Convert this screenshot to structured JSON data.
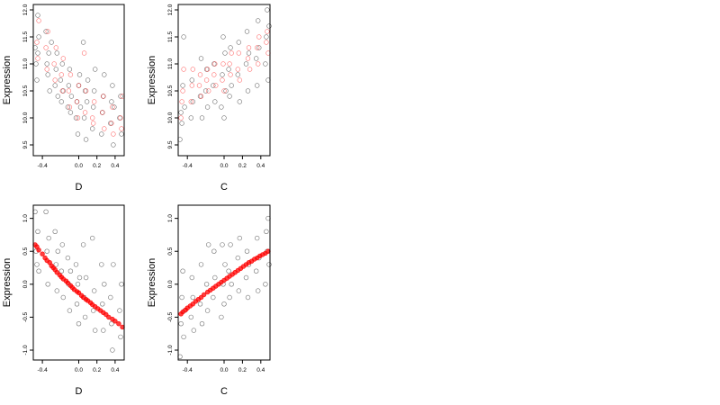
{
  "chart_data": [
    {
      "type": "scatter",
      "title": "",
      "xlabel": "D",
      "ylabel": "Expression",
      "xlim": [
        -0.5,
        0.5
      ],
      "ylim": [
        9.3,
        12.1
      ],
      "x_ticks": [
        -0.4,
        0.0,
        0.2,
        0.4
      ],
      "x_tick_labels": [
        "-0.4",
        "0.0",
        "0.2",
        "0.4"
      ],
      "y_ticks": [
        9.5,
        10.0,
        10.5,
        11.0,
        11.5,
        12.0
      ],
      "y_tick_labels": [
        "9.5",
        "10.0",
        "10.5",
        "11.0",
        "11.5",
        "12.0"
      ],
      "colors": {
        "observed": "#000000",
        "fitted": "#ff0000"
      },
      "series": [
        {
          "color": "#000000",
          "style": "open-circle",
          "x": [
            -0.48,
            -0.47,
            -0.46,
            -0.45,
            -0.45,
            -0.44,
            -0.36,
            -0.35,
            -0.34,
            -0.33,
            -0.32,
            -0.3,
            -0.26,
            -0.25,
            -0.24,
            -0.23,
            -0.2,
            -0.19,
            -0.18,
            -0.17,
            -0.12,
            -0.11,
            -0.1,
            -0.09,
            -0.08,
            -0.03,
            -0.02,
            -0.01,
            0.0,
            0.01,
            0.02,
            0.05,
            0.06,
            0.07,
            0.08,
            0.09,
            0.1,
            0.15,
            0.16,
            0.17,
            0.18,
            0.25,
            0.26,
            0.27,
            0.28,
            0.35,
            0.36,
            0.37,
            0.38,
            0.39,
            0.45,
            0.46,
            0.47
          ],
          "y": [
            11.3,
            11.0,
            10.7,
            11.9,
            11.2,
            11.5,
            11.6,
            11.0,
            10.8,
            11.2,
            10.5,
            11.4,
            10.6,
            10.9,
            11.2,
            10.4,
            10.7,
            10.3,
            11.0,
            10.5,
            10.2,
            10.6,
            10.9,
            10.1,
            10.4,
            10.0,
            10.3,
            9.7,
            10.6,
            10.8,
            10.2,
            11.4,
            10.0,
            10.5,
            9.6,
            10.3,
            10.7,
            9.8,
            10.2,
            10.5,
            10.9,
            9.7,
            10.1,
            10.4,
            10.8,
            9.9,
            10.3,
            10.6,
            9.5,
            10.2,
            10.0,
            10.4,
            9.7
          ]
        },
        {
          "color": "#ff0000",
          "style": "open-circle",
          "x": [
            -0.46,
            -0.45,
            -0.44,
            -0.36,
            -0.35,
            -0.34,
            -0.27,
            -0.26,
            -0.25,
            -0.19,
            -0.18,
            -0.17,
            -0.11,
            -0.1,
            -0.09,
            -0.02,
            -0.01,
            0.0,
            0.06,
            0.07,
            0.08,
            0.15,
            0.16,
            0.17,
            0.26,
            0.27,
            0.28,
            0.36,
            0.37,
            0.38,
            0.46,
            0.47,
            0.48
          ],
          "y": [
            11.4,
            11.1,
            11.8,
            11.3,
            10.9,
            11.6,
            11.0,
            10.7,
            11.3,
            10.8,
            10.5,
            11.1,
            10.5,
            10.2,
            10.8,
            10.3,
            10.0,
            10.6,
            11.2,
            10.1,
            10.5,
            10.0,
            9.9,
            10.3,
            10.1,
            10.4,
            9.8,
            9.9,
            10.2,
            9.7,
            10.0,
            9.8,
            10.4
          ]
        }
      ]
    },
    {
      "type": "scatter",
      "title": "",
      "xlabel": "C",
      "ylabel": "Expression",
      "xlim": [
        -0.5,
        0.5
      ],
      "ylim": [
        9.3,
        12.1
      ],
      "x_ticks": [
        -0.4,
        0.0,
        0.2,
        0.4
      ],
      "x_tick_labels": [
        "-0.4",
        "0.0",
        "0.2",
        "0.4"
      ],
      "y_ticks": [
        9.5,
        10.0,
        10.5,
        11.0,
        11.5,
        12.0
      ],
      "y_tick_labels": [
        "9.5",
        "10.0",
        "10.5",
        "11.0",
        "11.5",
        "12.0"
      ],
      "colors": {
        "observed": "#000000",
        "fitted": "#ff0000"
      },
      "series": [
        {
          "color": "#000000",
          "style": "open-circle",
          "x": [
            -0.48,
            -0.47,
            -0.46,
            -0.45,
            -0.44,
            -0.43,
            -0.36,
            -0.35,
            -0.34,
            -0.26,
            -0.25,
            -0.24,
            -0.2,
            -0.19,
            -0.18,
            -0.12,
            -0.11,
            -0.1,
            -0.03,
            -0.02,
            -0.01,
            0.0,
            0.01,
            0.02,
            0.05,
            0.06,
            0.07,
            0.08,
            0.15,
            0.16,
            0.17,
            0.24,
            0.25,
            0.26,
            0.27,
            0.35,
            0.36,
            0.37,
            0.38,
            0.45,
            0.46,
            0.47,
            0.48,
            0.49
          ],
          "y": [
            9.6,
            10.1,
            9.9,
            10.6,
            11.5,
            10.2,
            10.0,
            10.7,
            10.3,
            10.4,
            11.1,
            10.0,
            10.5,
            10.9,
            10.2,
            10.6,
            11.0,
            10.3,
            10.2,
            10.8,
            11.5,
            10.0,
            11.2,
            10.5,
            10.9,
            10.4,
            11.3,
            10.6,
            10.8,
            11.4,
            10.3,
            11.0,
            11.6,
            10.5,
            11.2,
            11.1,
            10.6,
            11.8,
            11.3,
            11.0,
            11.5,
            12.0,
            10.7,
            11.7
          ]
        },
        {
          "color": "#ff0000",
          "style": "open-circle",
          "x": [
            -0.47,
            -0.46,
            -0.45,
            -0.44,
            -0.36,
            -0.35,
            -0.34,
            -0.27,
            -0.26,
            -0.25,
            -0.19,
            -0.18,
            -0.17,
            -0.11,
            -0.1,
            -0.09,
            -0.02,
            -0.01,
            0.0,
            0.06,
            0.07,
            0.08,
            0.15,
            0.16,
            0.17,
            0.26,
            0.27,
            0.28,
            0.36,
            0.37,
            0.38,
            0.46,
            0.47,
            0.48
          ],
          "y": [
            10.0,
            10.3,
            10.5,
            10.9,
            10.3,
            10.6,
            10.9,
            10.6,
            10.8,
            10.4,
            10.7,
            10.9,
            10.5,
            10.8,
            11.0,
            10.6,
            10.7,
            11.0,
            10.5,
            11.0,
            10.8,
            11.2,
            10.9,
            11.2,
            10.7,
            11.1,
            11.3,
            10.9,
            11.3,
            11.0,
            11.5,
            11.4,
            11.6,
            11.2
          ]
        }
      ]
    },
    {
      "type": "scatter",
      "title": "",
      "xlabel": "D",
      "ylabel": "Expression",
      "xlim": [
        -0.5,
        0.5
      ],
      "ylim": [
        -1.15,
        1.2
      ],
      "x_ticks": [
        -0.4,
        0.0,
        0.2,
        0.4
      ],
      "x_tick_labels": [
        "-0.4",
        "0.0",
        "0.2",
        "0.4"
      ],
      "y_ticks": [
        -1.0,
        -0.5,
        0.0,
        0.5,
        1.0
      ],
      "y_tick_labels": [
        "-1.0",
        "-0.5",
        "0.0",
        "0.5",
        "1.0"
      ],
      "colors": {
        "observed": "#000000",
        "fitted": "#ff0000"
      },
      "series": [
        {
          "color": "#000000",
          "style": "open-circle",
          "x": [
            -0.48,
            -0.47,
            -0.46,
            -0.45,
            -0.44,
            -0.36,
            -0.35,
            -0.34,
            -0.33,
            -0.26,
            -0.25,
            -0.24,
            -0.23,
            -0.19,
            -0.18,
            -0.17,
            -0.12,
            -0.11,
            -0.1,
            -0.09,
            -0.03,
            -0.02,
            -0.01,
            0.0,
            0.01,
            0.05,
            0.06,
            0.07,
            0.08,
            0.15,
            0.16,
            0.17,
            0.18,
            0.25,
            0.26,
            0.27,
            0.28,
            0.35,
            0.36,
            0.37,
            0.38,
            0.45,
            0.46,
            0.47
          ],
          "y": [
            1.1,
            0.5,
            0.3,
            0.8,
            0.2,
            1.1,
            0.5,
            0.0,
            0.7,
            0.8,
            0.3,
            -0.1,
            0.5,
            0.2,
            0.6,
            -0.2,
            0.4,
            0.0,
            -0.4,
            0.2,
            0.3,
            -0.3,
            0.0,
            -0.6,
            0.1,
            0.6,
            -0.2,
            -0.5,
            0.1,
            0.7,
            -0.4,
            -0.1,
            -0.7,
            0.3,
            -0.3,
            -0.7,
            0.0,
            -0.2,
            -0.6,
            -1.0,
            0.3,
            -0.4,
            -0.8,
            0.0
          ]
        },
        {
          "color": "#ff0000",
          "style": "filled-circle",
          "x": [
            -0.48,
            -0.46,
            -0.44,
            -0.4,
            -0.37,
            -0.35,
            -0.32,
            -0.3,
            -0.28,
            -0.26,
            -0.24,
            -0.21,
            -0.19,
            -0.17,
            -0.14,
            -0.12,
            -0.09,
            -0.07,
            -0.05,
            -0.02,
            0.0,
            0.03,
            0.05,
            0.08,
            0.1,
            0.13,
            0.15,
            0.18,
            0.21,
            0.24,
            0.27,
            0.3,
            0.33,
            0.37,
            0.4,
            0.44,
            0.48
          ],
          "y": [
            0.6,
            0.57,
            0.52,
            0.46,
            0.4,
            0.36,
            0.33,
            0.28,
            0.25,
            0.22,
            0.18,
            0.14,
            0.11,
            0.08,
            0.05,
            0.02,
            -0.02,
            -0.05,
            -0.08,
            -0.11,
            -0.13,
            -0.17,
            -0.2,
            -0.23,
            -0.25,
            -0.28,
            -0.31,
            -0.34,
            -0.37,
            -0.4,
            -0.43,
            -0.46,
            -0.5,
            -0.53,
            -0.56,
            -0.6,
            -0.65
          ]
        }
      ]
    },
    {
      "type": "scatter",
      "title": "",
      "xlabel": "C",
      "ylabel": "Expression",
      "xlim": [
        -0.5,
        0.5
      ],
      "ylim": [
        -1.15,
        1.2
      ],
      "x_ticks": [
        -0.4,
        0.0,
        0.2,
        0.4
      ],
      "x_tick_labels": [
        "-0.4",
        "0.0",
        "0.2",
        "0.4"
      ],
      "y_ticks": [
        -1.0,
        -0.5,
        0.0,
        0.5,
        1.0
      ],
      "y_tick_labels": [
        "-1.0",
        "-0.5",
        "0.0",
        "0.5",
        "1.0"
      ],
      "colors": {
        "observed": "#000000",
        "fitted": "#ff0000"
      },
      "series": [
        {
          "color": "#000000",
          "style": "open-circle",
          "x": [
            -0.48,
            -0.47,
            -0.46,
            -0.45,
            -0.44,
            -0.43,
            -0.36,
            -0.35,
            -0.34,
            -0.33,
            -0.26,
            -0.25,
            -0.24,
            -0.19,
            -0.18,
            -0.17,
            -0.12,
            -0.11,
            -0.1,
            -0.03,
            -0.02,
            -0.01,
            0.0,
            0.01,
            0.05,
            0.06,
            0.07,
            0.08,
            0.15,
            0.16,
            0.17,
            0.24,
            0.25,
            0.26,
            0.27,
            0.35,
            0.36,
            0.37,
            0.38,
            0.45,
            0.46,
            0.47,
            0.48,
            0.49
          ],
          "y": [
            -1.1,
            -0.6,
            -0.2,
            0.2,
            -0.8,
            -0.4,
            -0.5,
            0.1,
            -0.2,
            -0.7,
            -0.3,
            0.3,
            -0.6,
            0.0,
            -0.4,
            0.6,
            -0.2,
            0.5,
            0.1,
            -0.5,
            0.6,
            0.0,
            -0.3,
            0.3,
            0.2,
            -0.2,
            0.6,
            0.0,
            0.4,
            -0.1,
            0.7,
            0.1,
            0.5,
            -0.2,
            0.3,
            0.2,
            0.7,
            -0.1,
            0.4,
            0.0,
            0.8,
            0.5,
            1.0,
            0.3
          ]
        },
        {
          "color": "#ff0000",
          "style": "filled-circle",
          "x": [
            -0.47,
            -0.45,
            -0.42,
            -0.4,
            -0.37,
            -0.34,
            -0.31,
            -0.28,
            -0.25,
            -0.22,
            -0.18,
            -0.15,
            -0.12,
            -0.09,
            -0.06,
            -0.03,
            0.0,
            0.03,
            0.06,
            0.09,
            0.12,
            0.15,
            0.18,
            0.21,
            0.24,
            0.27,
            0.3,
            0.33,
            0.36,
            0.39,
            0.42,
            0.45,
            0.48
          ],
          "y": [
            -0.45,
            -0.42,
            -0.39,
            -0.36,
            -0.33,
            -0.3,
            -0.26,
            -0.23,
            -0.2,
            -0.16,
            -0.12,
            -0.09,
            -0.06,
            -0.03,
            0.0,
            0.03,
            0.06,
            0.09,
            0.12,
            0.15,
            0.18,
            0.21,
            0.24,
            0.27,
            0.3,
            0.33,
            0.35,
            0.38,
            0.4,
            0.43,
            0.45,
            0.47,
            0.5
          ]
        }
      ]
    }
  ]
}
